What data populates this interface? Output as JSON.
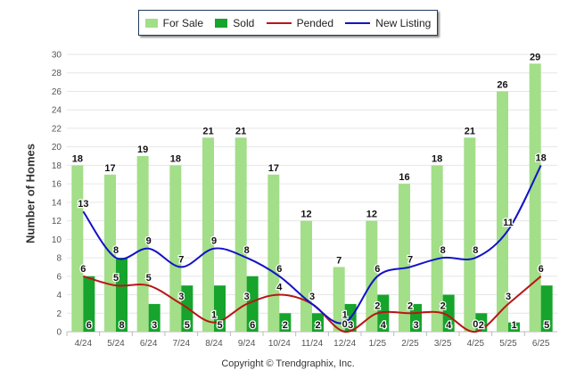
{
  "legend": {
    "for_sale": "For Sale",
    "sold": "Sold",
    "pended": "Pended",
    "new_listing": "New Listing"
  },
  "copyright": "Copyright © Trendgraphix, Inc.",
  "colors": {
    "for_sale": "#a3de88",
    "sold": "#16a42c",
    "pended": "#b81616",
    "new_listing": "#1212c8",
    "grid": "#e6e6e6",
    "axis_text": "#555555"
  },
  "chart_data": {
    "type": "bar",
    "categories": [
      "4/24",
      "5/24",
      "6/24",
      "7/24",
      "8/24",
      "9/24",
      "10/24",
      "11/24",
      "12/24",
      "1/25",
      "2/25",
      "3/25",
      "4/25",
      "5/25",
      "6/25"
    ],
    "series": [
      {
        "name": "For Sale",
        "kind": "bar",
        "values": [
          18,
          17,
          19,
          18,
          21,
          21,
          17,
          12,
          7,
          12,
          16,
          18,
          21,
          26,
          29
        ]
      },
      {
        "name": "Sold",
        "kind": "bar",
        "values": [
          6,
          8,
          3,
          5,
          5,
          6,
          2,
          2,
          3,
          4,
          3,
          4,
          2,
          1,
          5
        ]
      },
      {
        "name": "Pended",
        "kind": "line",
        "values": [
          6,
          5,
          5,
          3,
          1,
          3,
          4,
          3,
          0,
          2,
          2,
          2,
          0,
          3,
          6
        ]
      },
      {
        "name": "New Listing",
        "kind": "line",
        "values": [
          13,
          8,
          9,
          7,
          9,
          8,
          6,
          3,
          1,
          6,
          7,
          8,
          8,
          11,
          18
        ]
      }
    ],
    "ylabel": "Number of Homes",
    "xlabel": "",
    "ylim": [
      0,
      30
    ],
    "yticks": [
      0,
      2,
      4,
      6,
      8,
      10,
      12,
      14,
      16,
      18,
      20,
      22,
      24,
      26,
      28,
      30
    ],
    "grid": true,
    "legend_position": "top-center"
  }
}
